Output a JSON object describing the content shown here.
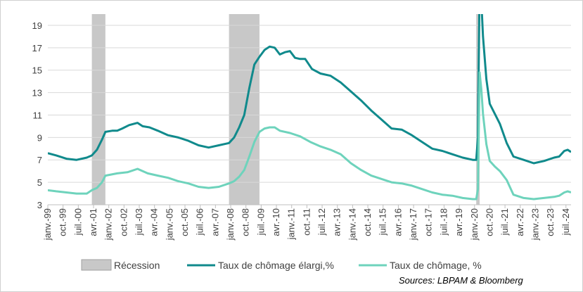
{
  "chart_data": {
    "type": "line",
    "title": "",
    "xlabel": "",
    "ylabel": "",
    "ylim": [
      3,
      20
    ],
    "y_ticks": [
      3,
      5,
      7,
      9,
      11,
      13,
      15,
      17,
      19
    ],
    "x_tick_labels": [
      "janv.-99",
      "oct.-99",
      "juil.-00",
      "avr.-01",
      "janv.-02",
      "oct.-02",
      "juil.-03",
      "avr.-04",
      "janv.-05",
      "oct.-05",
      "juil.-06",
      "avr.-07",
      "janv.-08",
      "oct.-08",
      "juil.-09",
      "avr.-10",
      "janv.-11",
      "oct.-11",
      "juil.-12",
      "avr.-13",
      "janv.-14",
      "oct.-14",
      "juil.-15",
      "avr.-16",
      "janv.-17",
      "oct.-17",
      "juil.-18",
      "avr.-19",
      "janv.-20",
      "oct.-20",
      "juil.-21",
      "avr.-22",
      "janv.-23",
      "oct.-23",
      "juil.-24"
    ],
    "recessions": [
      {
        "start": "2001-03",
        "end": "2001-11"
      },
      {
        "start": "2007-12",
        "end": "2009-06"
      },
      {
        "start": "2020-02",
        "end": "2020-04"
      }
    ],
    "series": [
      {
        "name": "Taux de chômage élargi,%",
        "color": "#108A8C",
        "points": [
          [
            "1999-01",
            7.6
          ],
          [
            "1999-06",
            7.4
          ],
          [
            "1999-12",
            7.1
          ],
          [
            "2000-06",
            7.0
          ],
          [
            "2000-12",
            7.2
          ],
          [
            "2001-03",
            7.4
          ],
          [
            "2001-06",
            7.9
          ],
          [
            "2001-09",
            8.8
          ],
          [
            "2001-11",
            9.5
          ],
          [
            "2002-03",
            9.6
          ],
          [
            "2002-06",
            9.6
          ],
          [
            "2002-09",
            9.8
          ],
          [
            "2003-01",
            10.1
          ],
          [
            "2003-06",
            10.3
          ],
          [
            "2003-09",
            10.0
          ],
          [
            "2004-01",
            9.9
          ],
          [
            "2004-06",
            9.6
          ],
          [
            "2004-12",
            9.2
          ],
          [
            "2005-06",
            9.0
          ],
          [
            "2005-12",
            8.7
          ],
          [
            "2006-06",
            8.3
          ],
          [
            "2006-12",
            8.1
          ],
          [
            "2007-06",
            8.3
          ],
          [
            "2007-12",
            8.5
          ],
          [
            "2008-03",
            9.0
          ],
          [
            "2008-06",
            9.9
          ],
          [
            "2008-09",
            11.0
          ],
          [
            "2008-12",
            13.4
          ],
          [
            "2009-03",
            15.5
          ],
          [
            "2009-06",
            16.2
          ],
          [
            "2009-09",
            16.8
          ],
          [
            "2009-12",
            17.1
          ],
          [
            "2010-03",
            17.0
          ],
          [
            "2010-06",
            16.4
          ],
          [
            "2010-09",
            16.6
          ],
          [
            "2010-12",
            16.7
          ],
          [
            "2011-03",
            16.1
          ],
          [
            "2011-06",
            16.0
          ],
          [
            "2011-09",
            16.0
          ],
          [
            "2012-01",
            15.1
          ],
          [
            "2012-06",
            14.7
          ],
          [
            "2012-12",
            14.5
          ],
          [
            "2013-06",
            13.9
          ],
          [
            "2013-12",
            13.1
          ],
          [
            "2014-06",
            12.3
          ],
          [
            "2014-12",
            11.4
          ],
          [
            "2015-06",
            10.6
          ],
          [
            "2015-12",
            9.8
          ],
          [
            "2016-06",
            9.7
          ],
          [
            "2016-12",
            9.2
          ],
          [
            "2017-06",
            8.6
          ],
          [
            "2017-12",
            8.0
          ],
          [
            "2018-06",
            7.8
          ],
          [
            "2018-12",
            7.5
          ],
          [
            "2019-06",
            7.2
          ],
          [
            "2019-12",
            7.0
          ],
          [
            "2020-02",
            7.0
          ],
          [
            "2020-03",
            9.0
          ],
          [
            "2020-04",
            22.8
          ],
          [
            "2020-05",
            21.2
          ],
          [
            "2020-06",
            18.0
          ],
          [
            "2020-08",
            14.2
          ],
          [
            "2020-10",
            12.0
          ],
          [
            "2021-01",
            11.1
          ],
          [
            "2021-04",
            10.2
          ],
          [
            "2021-08",
            8.5
          ],
          [
            "2021-12",
            7.3
          ],
          [
            "2022-06",
            7.0
          ],
          [
            "2022-12",
            6.7
          ],
          [
            "2023-06",
            6.9
          ],
          [
            "2023-12",
            7.2
          ],
          [
            "2024-03",
            7.3
          ],
          [
            "2024-06",
            7.8
          ],
          [
            "2024-08",
            7.9
          ],
          [
            "2024-10",
            7.7
          ]
        ]
      },
      {
        "name": "Taux de chômage, %",
        "color": "#6ED3BC",
        "points": [
          [
            "1999-01",
            4.3
          ],
          [
            "1999-06",
            4.2
          ],
          [
            "1999-12",
            4.1
          ],
          [
            "2000-06",
            4.0
          ],
          [
            "2000-12",
            4.0
          ],
          [
            "2001-03",
            4.3
          ],
          [
            "2001-06",
            4.5
          ],
          [
            "2001-09",
            5.0
          ],
          [
            "2001-11",
            5.6
          ],
          [
            "2002-06",
            5.8
          ],
          [
            "2002-12",
            5.9
          ],
          [
            "2003-06",
            6.2
          ],
          [
            "2003-12",
            5.8
          ],
          [
            "2004-06",
            5.6
          ],
          [
            "2004-12",
            5.4
          ],
          [
            "2005-06",
            5.1
          ],
          [
            "2005-12",
            4.9
          ],
          [
            "2006-06",
            4.6
          ],
          [
            "2006-12",
            4.5
          ],
          [
            "2007-06",
            4.6
          ],
          [
            "2007-12",
            4.9
          ],
          [
            "2008-03",
            5.1
          ],
          [
            "2008-06",
            5.5
          ],
          [
            "2008-09",
            6.1
          ],
          [
            "2008-12",
            7.3
          ],
          [
            "2009-03",
            8.6
          ],
          [
            "2009-06",
            9.5
          ],
          [
            "2009-09",
            9.8
          ],
          [
            "2009-12",
            9.9
          ],
          [
            "2010-03",
            9.9
          ],
          [
            "2010-06",
            9.6
          ],
          [
            "2010-12",
            9.4
          ],
          [
            "2011-06",
            9.1
          ],
          [
            "2011-12",
            8.6
          ],
          [
            "2012-06",
            8.2
          ],
          [
            "2012-12",
            7.9
          ],
          [
            "2013-06",
            7.5
          ],
          [
            "2013-12",
            6.7
          ],
          [
            "2014-06",
            6.1
          ],
          [
            "2014-12",
            5.6
          ],
          [
            "2015-06",
            5.3
          ],
          [
            "2015-12",
            5.0
          ],
          [
            "2016-06",
            4.9
          ],
          [
            "2016-12",
            4.7
          ],
          [
            "2017-06",
            4.4
          ],
          [
            "2017-12",
            4.1
          ],
          [
            "2018-06",
            3.9
          ],
          [
            "2018-12",
            3.8
          ],
          [
            "2019-06",
            3.6
          ],
          [
            "2019-12",
            3.5
          ],
          [
            "2020-02",
            3.5
          ],
          [
            "2020-03",
            4.4
          ],
          [
            "2020-04",
            14.8
          ],
          [
            "2020-05",
            13.3
          ],
          [
            "2020-06",
            11.1
          ],
          [
            "2020-08",
            8.4
          ],
          [
            "2020-10",
            6.9
          ],
          [
            "2021-01",
            6.4
          ],
          [
            "2021-04",
            6.0
          ],
          [
            "2021-08",
            5.2
          ],
          [
            "2021-12",
            3.9
          ],
          [
            "2022-06",
            3.6
          ],
          [
            "2022-12",
            3.5
          ],
          [
            "2023-06",
            3.6
          ],
          [
            "2023-12",
            3.7
          ],
          [
            "2024-03",
            3.8
          ],
          [
            "2024-06",
            4.1
          ],
          [
            "2024-08",
            4.2
          ],
          [
            "2024-10",
            4.1
          ]
        ]
      }
    ]
  },
  "legend": {
    "recession_label": "Récession",
    "series1_label": "Taux de chômage élargi,%",
    "series2_label": "Taux de chômage, %",
    "recession_color": "#C8C8C8"
  },
  "source": "Sources: LBPAM & Bloomberg"
}
